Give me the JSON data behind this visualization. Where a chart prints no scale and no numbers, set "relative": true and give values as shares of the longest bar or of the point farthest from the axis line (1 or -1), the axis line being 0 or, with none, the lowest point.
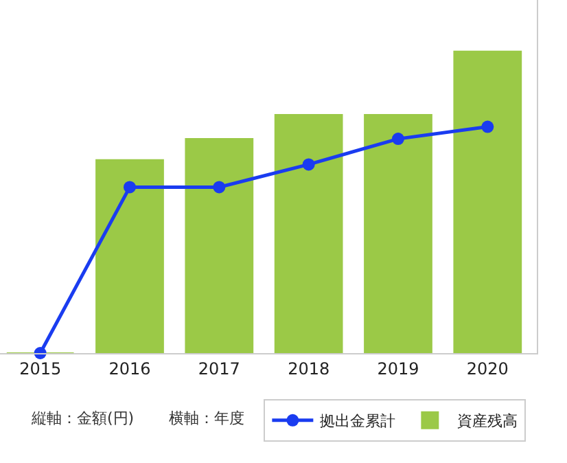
{
  "chart_data": {
    "type": "bar",
    "relative": true,
    "categories": [
      "2015",
      "2016",
      "2017",
      "2018",
      "2019",
      "2020"
    ],
    "series": [
      {
        "name": "資産残高",
        "color": "#9bc947",
        "values": [
          0,
          0.64,
          0.71,
          0.79,
          0.79,
          1
        ]
      },
      {
        "name": "拠出金累計",
        "type": "line",
        "color": "#1a3cf0",
        "values": [
          0,
          0.55,
          0.55,
          0.625,
          0.71,
          0.75
        ]
      }
    ],
    "annotations": [
      "縦軸：金額(円)",
      "横軸：年度"
    ],
    "legend": "bottom",
    "marker": "circle"
  }
}
